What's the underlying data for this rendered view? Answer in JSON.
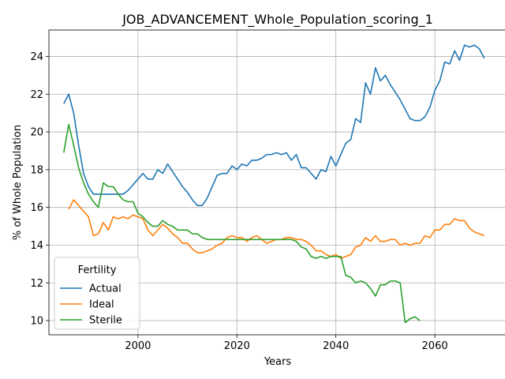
{
  "chart_data": {
    "type": "line",
    "title": "JOB_ADVANCEMENT_Whole_Population_scoring_1",
    "xlabel": "Years",
    "ylabel": "% of Whole Population",
    "xlim": [
      1982,
      2074.5
    ],
    "ylim": [
      9.25,
      25.4
    ],
    "xticks": [
      2000,
      2020,
      2040,
      2060
    ],
    "yticks": [
      10,
      12,
      14,
      16,
      18,
      20,
      22,
      24
    ],
    "grid": true,
    "legend": {
      "title": "Fertility",
      "position": "lower-left"
    },
    "series": [
      {
        "name": "Actual",
        "color": "#1f77b4",
        "x": [
          1985,
          1986,
          1987,
          1988,
          1989,
          1990,
          1991,
          1992,
          1993,
          1994,
          1995,
          1996,
          1997,
          1998,
          1999,
          2000,
          2001,
          2002,
          2003,
          2004,
          2005,
          2006,
          2007,
          2008,
          2009,
          2010,
          2011,
          2012,
          2013,
          2014,
          2015,
          2016,
          2017,
          2018,
          2019,
          2020,
          2021,
          2022,
          2023,
          2024,
          2025,
          2026,
          2027,
          2028,
          2029,
          2030,
          2031,
          2032,
          2033,
          2034,
          2035,
          2036,
          2037,
          2038,
          2039,
          2040,
          2041,
          2042,
          2043,
          2044,
          2045,
          2046,
          2047,
          2048,
          2049,
          2050,
          2051,
          2052,
          2053,
          2054,
          2055,
          2056,
          2057,
          2058,
          2059,
          2060,
          2061,
          2062,
          2063,
          2064,
          2065,
          2066,
          2067,
          2068,
          2069,
          2070
        ],
        "values": [
          21.5,
          22.0,
          21.0,
          19.3,
          17.8,
          17.1,
          16.7,
          16.7,
          16.7,
          16.7,
          16.7,
          16.7,
          16.7,
          16.9,
          17.2,
          17.5,
          17.8,
          17.5,
          17.5,
          18.0,
          17.8,
          18.3,
          17.9,
          17.5,
          17.1,
          16.8,
          16.4,
          16.1,
          16.1,
          16.5,
          17.1,
          17.7,
          17.8,
          17.8,
          18.2,
          18.0,
          18.3,
          18.2,
          18.5,
          18.5,
          18.6,
          18.8,
          18.8,
          18.9,
          18.8,
          18.9,
          18.5,
          18.8,
          18.1,
          18.1,
          17.8,
          17.5,
          18.0,
          17.9,
          18.7,
          18.2,
          18.8,
          19.4,
          19.6,
          20.7,
          20.5,
          22.6,
          22.0,
          23.4,
          22.7,
          23.0,
          22.5,
          22.1,
          21.7,
          21.2,
          20.7,
          20.6,
          20.6,
          20.8,
          21.3,
          22.2,
          22.7,
          23.7,
          23.6,
          24.3,
          23.8,
          24.6,
          24.5,
          24.6,
          24.4,
          23.9
        ]
      },
      {
        "name": "Ideal",
        "color": "#ff7f0e",
        "x": [
          1986,
          1987,
          1988,
          1989,
          1990,
          1991,
          1992,
          1993,
          1994,
          1995,
          1996,
          1997,
          1998,
          1999,
          2000,
          2001,
          2002,
          2003,
          2004,
          2005,
          2006,
          2007,
          2008,
          2009,
          2010,
          2011,
          2012,
          2013,
          2014,
          2015,
          2016,
          2017,
          2018,
          2019,
          2020,
          2021,
          2022,
          2023,
          2024,
          2025,
          2026,
          2027,
          2028,
          2029,
          2030,
          2031,
          2032,
          2033,
          2034,
          2035,
          2036,
          2037,
          2038,
          2039,
          2040,
          2041,
          2042,
          2043,
          2044,
          2045,
          2046,
          2047,
          2048,
          2049,
          2050,
          2051,
          2052,
          2053,
          2054,
          2055,
          2056,
          2057,
          2058,
          2059,
          2060,
          2061,
          2062,
          2063,
          2064,
          2065,
          2066,
          2067,
          2068,
          2069,
          2070
        ],
        "values": [
          15.9,
          16.4,
          16.1,
          15.8,
          15.5,
          14.5,
          14.6,
          15.2,
          14.8,
          15.5,
          15.4,
          15.5,
          15.4,
          15.6,
          15.5,
          15.4,
          14.8,
          14.5,
          14.8,
          15.1,
          14.9,
          14.6,
          14.4,
          14.1,
          14.1,
          13.8,
          13.6,
          13.6,
          13.7,
          13.8,
          14.0,
          14.1,
          14.4,
          14.5,
          14.4,
          14.4,
          14.2,
          14.4,
          14.5,
          14.3,
          14.1,
          14.2,
          14.3,
          14.3,
          14.4,
          14.4,
          14.3,
          14.3,
          14.2,
          14.0,
          13.7,
          13.7,
          13.5,
          13.4,
          13.5,
          13.3,
          13.4,
          13.5,
          13.9,
          14.0,
          14.4,
          14.2,
          14.5,
          14.2,
          14.2,
          14.3,
          14.3,
          14.0,
          14.1,
          14.0,
          14.1,
          14.1,
          14.5,
          14.4,
          14.8,
          14.8,
          15.1,
          15.1,
          15.4,
          15.3,
          15.3,
          14.9,
          14.7,
          14.6,
          14.5
        ]
      },
      {
        "name": "Sterile",
        "color": "#2ca02c",
        "x": [
          1985,
          1986,
          1987,
          1988,
          1989,
          1990,
          1991,
          1992,
          1993,
          1994,
          1995,
          1996,
          1997,
          1998,
          1999,
          2000,
          2001,
          2002,
          2003,
          2004,
          2005,
          2006,
          2007,
          2008,
          2009,
          2010,
          2011,
          2012,
          2013,
          2014,
          2015,
          2016,
          2017,
          2018,
          2019,
          2020,
          2021,
          2022,
          2023,
          2024,
          2025,
          2026,
          2027,
          2028,
          2029,
          2030,
          2031,
          2032,
          2033,
          2034,
          2035,
          2036,
          2037,
          2038,
          2039,
          2040,
          2041,
          2042,
          2043,
          2044,
          2045,
          2046,
          2047,
          2048,
          2049,
          2050,
          2051,
          2052,
          2053,
          2054,
          2055,
          2056,
          2057
        ],
        "values": [
          18.9,
          20.4,
          19.3,
          18.1,
          17.3,
          16.7,
          16.3,
          16.0,
          17.3,
          17.1,
          17.1,
          16.7,
          16.4,
          16.3,
          16.3,
          15.7,
          15.5,
          15.2,
          15.0,
          15.0,
          15.3,
          15.1,
          15.0,
          14.8,
          14.8,
          14.8,
          14.6,
          14.6,
          14.4,
          14.3,
          14.3,
          14.3,
          14.3,
          14.3,
          14.3,
          14.3,
          14.3,
          14.3,
          14.3,
          14.3,
          14.3,
          14.3,
          14.3,
          14.3,
          14.3,
          14.3,
          14.3,
          14.2,
          13.9,
          13.8,
          13.4,
          13.3,
          13.4,
          13.3,
          13.4,
          13.4,
          13.4,
          12.4,
          12.3,
          12.0,
          12.1,
          12.0,
          11.7,
          11.3,
          11.9,
          11.9,
          12.1,
          12.1,
          12.0,
          9.9,
          10.1,
          10.2,
          10.0
        ]
      }
    ]
  }
}
